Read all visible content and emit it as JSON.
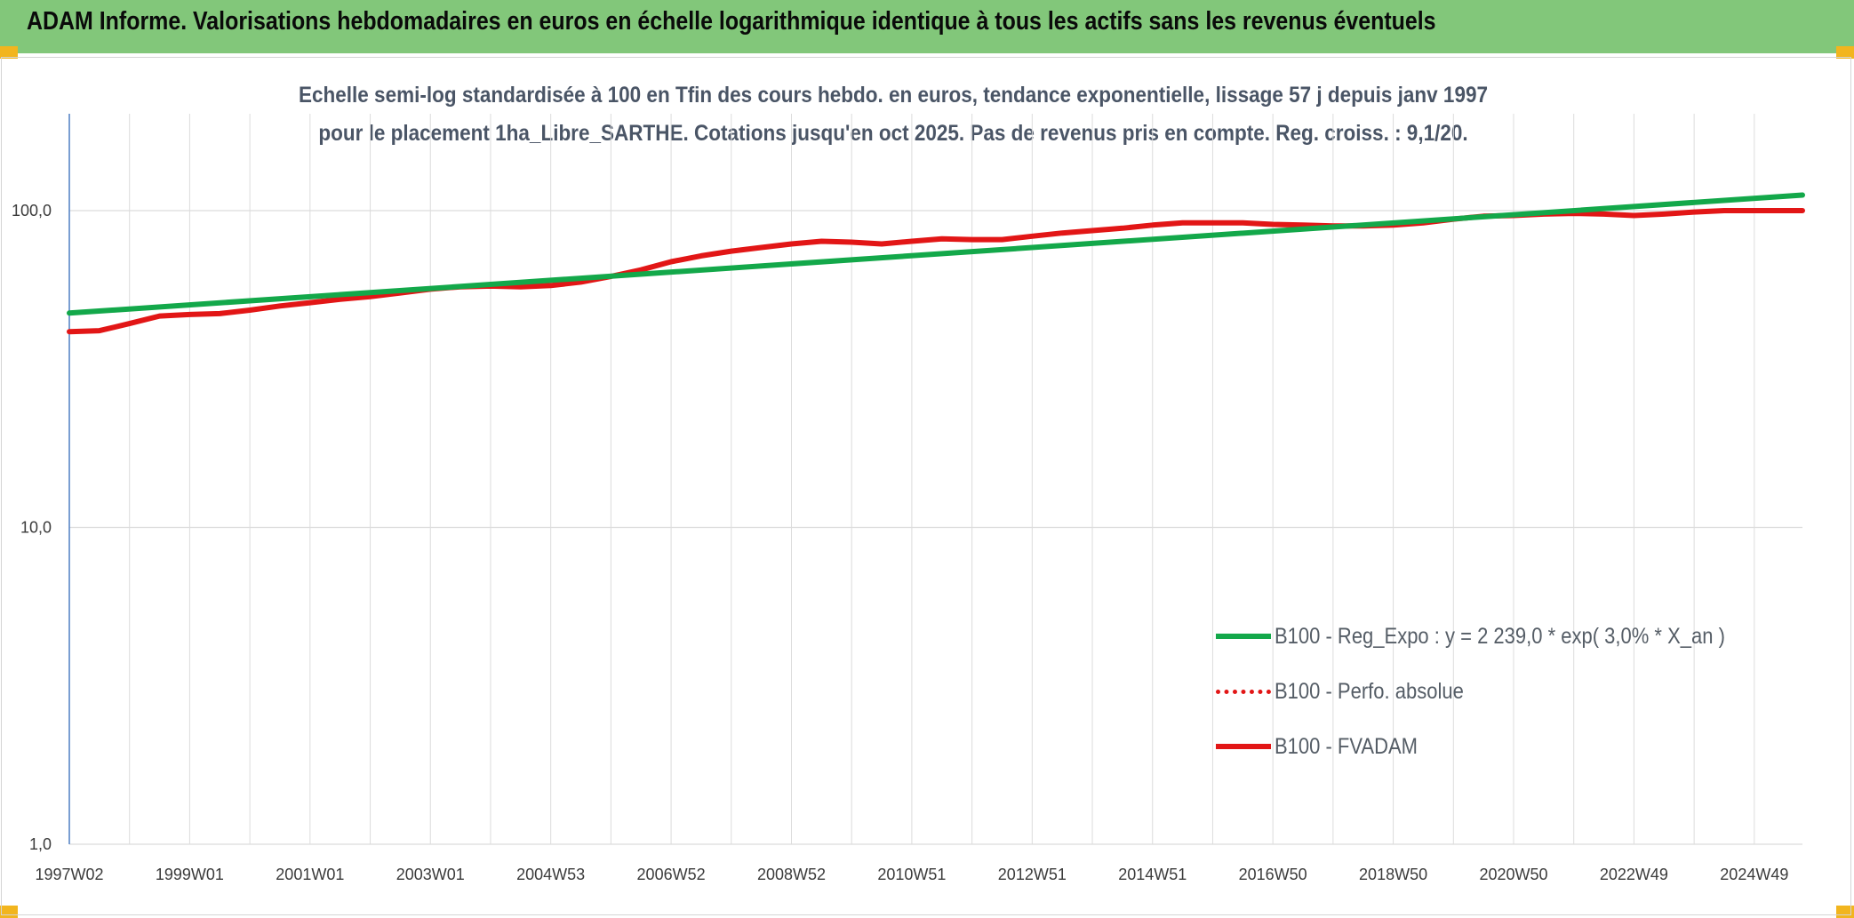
{
  "header": {
    "title": "ADAM Informe. Valorisations hebdomadaires en euros en échelle logarithmique identique à tous les actifs sans les revenus éventuels"
  },
  "chart_data": {
    "type": "line",
    "title": "Echelle semi-log standardisée à 100 en Tfin des cours hebdo. en euros, tendance exponentielle, lissage 57 j depuis janv 1997 pour le placement 1ha_Libre_SARTHE. Cotations jusqu'en oct 2025. Pas de revenus pris en compte. Reg. croiss. : 9,1/20.",
    "y_scale": "log",
    "ylim": [
      1,
      200
    ],
    "xlim": [
      1997.0,
      2025.8
    ],
    "y_ticks": [
      {
        "value": 1,
        "label": "1,0"
      },
      {
        "value": 10,
        "label": "10,0"
      },
      {
        "value": 100,
        "label": "100,0"
      }
    ],
    "x_ticks": [
      {
        "value": 1997.0,
        "label": "1997W02"
      },
      {
        "value": 1999.0,
        "label": "1999W01"
      },
      {
        "value": 2001.0,
        "label": "2001W01"
      },
      {
        "value": 2003.0,
        "label": "2003W01"
      },
      {
        "value": 2005.0,
        "label": "2004W53"
      },
      {
        "value": 2007.0,
        "label": "2006W52"
      },
      {
        "value": 2009.0,
        "label": "2008W52"
      },
      {
        "value": 2011.0,
        "label": "2010W51"
      },
      {
        "value": 2013.0,
        "label": "2012W51"
      },
      {
        "value": 2015.0,
        "label": "2014W51"
      },
      {
        "value": 2017.0,
        "label": "2016W50"
      },
      {
        "value": 2019.0,
        "label": "2018W50"
      },
      {
        "value": 2021.0,
        "label": "2020W50"
      },
      {
        "value": 2023.0,
        "label": "2022W49"
      },
      {
        "value": 2025.0,
        "label": "2024W49"
      }
    ],
    "x_gridlines": [
      1997.0,
      1998.0,
      1999.0,
      2000.0,
      2001.0,
      2002.0,
      2003.0,
      2004.0,
      2005.0,
      2006.0,
      2007.0,
      2008.0,
      2009.0,
      2010.0,
      2011.0,
      2012.0,
      2013.0,
      2014.0,
      2015.0,
      2016.0,
      2017.0,
      2018.0,
      2019.0,
      2020.0,
      2021.0,
      2022.0,
      2023.0,
      2024.0,
      2025.0
    ],
    "legend_position": "right",
    "series": [
      {
        "name": "B100 - Reg_Expo : y = 2 239,0 * exp( 3,0% *  X_an )",
        "color": "#13a84a",
        "style": "solid",
        "points": [
          [
            1997.0,
            47.5
          ],
          [
            2025.8,
            112
          ]
        ]
      },
      {
        "name": "B100 - Perfo. absolue",
        "color": "#e21616",
        "style": "dotted",
        "points": [
          [
            1997.0,
            41.5
          ],
          [
            1997.5,
            41.8
          ],
          [
            1998.0,
            44
          ],
          [
            1998.5,
            46.5
          ],
          [
            1999.0,
            47
          ],
          [
            1999.5,
            47.3
          ],
          [
            2000.0,
            48.5
          ],
          [
            2000.5,
            50
          ],
          [
            2001.0,
            51.2
          ],
          [
            2001.5,
            52.5
          ],
          [
            2002.0,
            53.5
          ],
          [
            2002.5,
            55
          ],
          [
            2003.0,
            56.5
          ],
          [
            2003.5,
            57.5
          ],
          [
            2004.0,
            57.8
          ],
          [
            2004.5,
            57.5
          ],
          [
            2005.0,
            58
          ],
          [
            2005.5,
            59.5
          ],
          [
            2006.0,
            62
          ],
          [
            2006.5,
            65
          ],
          [
            2007.0,
            69
          ],
          [
            2007.5,
            72
          ],
          [
            2008.0,
            74.5
          ],
          [
            2008.5,
            76.5
          ],
          [
            2009.0,
            78.5
          ],
          [
            2009.5,
            80
          ],
          [
            2010.0,
            79.5
          ],
          [
            2010.5,
            78.5
          ],
          [
            2011.0,
            80
          ],
          [
            2011.5,
            81.5
          ],
          [
            2012.0,
            81
          ],
          [
            2012.5,
            81
          ],
          [
            2013.0,
            83
          ],
          [
            2013.5,
            85
          ],
          [
            2014.0,
            86.5
          ],
          [
            2014.5,
            88
          ],
          [
            2015.0,
            90
          ],
          [
            2015.5,
            91.5
          ],
          [
            2016.0,
            91.5
          ],
          [
            2016.5,
            91.5
          ],
          [
            2017.0,
            90.5
          ],
          [
            2017.5,
            90
          ],
          [
            2018.0,
            89.5
          ],
          [
            2018.5,
            89.5
          ],
          [
            2019.0,
            90
          ],
          [
            2019.5,
            91.5
          ],
          [
            2020.0,
            94
          ],
          [
            2020.5,
            96
          ],
          [
            2021.0,
            96.5
          ],
          [
            2021.5,
            97.5
          ],
          [
            2022.0,
            98
          ],
          [
            2022.5,
            97.5
          ],
          [
            2023.0,
            96.5
          ],
          [
            2023.5,
            97.5
          ],
          [
            2024.0,
            99
          ],
          [
            2024.5,
            100
          ],
          [
            2025.0,
            100
          ],
          [
            2025.8,
            100
          ]
        ]
      },
      {
        "name": "B100 - FVADAM",
        "color": "#e21616",
        "style": "solid",
        "points": [
          [
            1997.0,
            41.5
          ],
          [
            1997.5,
            41.8
          ],
          [
            1998.0,
            44
          ],
          [
            1998.5,
            46.5
          ],
          [
            1999.0,
            47
          ],
          [
            1999.5,
            47.3
          ],
          [
            2000.0,
            48.5
          ],
          [
            2000.5,
            50
          ],
          [
            2001.0,
            51.2
          ],
          [
            2001.5,
            52.5
          ],
          [
            2002.0,
            53.5
          ],
          [
            2002.5,
            55
          ],
          [
            2003.0,
            56.5
          ],
          [
            2003.5,
            57.5
          ],
          [
            2004.0,
            57.8
          ],
          [
            2004.5,
            57.5
          ],
          [
            2005.0,
            58
          ],
          [
            2005.5,
            59.5
          ],
          [
            2006.0,
            62
          ],
          [
            2006.5,
            65
          ],
          [
            2007.0,
            69
          ],
          [
            2007.5,
            72
          ],
          [
            2008.0,
            74.5
          ],
          [
            2008.5,
            76.5
          ],
          [
            2009.0,
            78.5
          ],
          [
            2009.5,
            80
          ],
          [
            2010.0,
            79.5
          ],
          [
            2010.5,
            78.5
          ],
          [
            2011.0,
            80
          ],
          [
            2011.5,
            81.5
          ],
          [
            2012.0,
            81
          ],
          [
            2012.5,
            81
          ],
          [
            2013.0,
            83
          ],
          [
            2013.5,
            85
          ],
          [
            2014.0,
            86.5
          ],
          [
            2014.5,
            88
          ],
          [
            2015.0,
            90
          ],
          [
            2015.5,
            91.5
          ],
          [
            2016.0,
            91.5
          ],
          [
            2016.5,
            91.5
          ],
          [
            2017.0,
            90.5
          ],
          [
            2017.5,
            90
          ],
          [
            2018.0,
            89.5
          ],
          [
            2018.5,
            89.5
          ],
          [
            2019.0,
            90
          ],
          [
            2019.5,
            91.5
          ],
          [
            2020.0,
            94
          ],
          [
            2020.5,
            96
          ],
          [
            2021.0,
            96.5
          ],
          [
            2021.5,
            97.5
          ],
          [
            2022.0,
            98
          ],
          [
            2022.5,
            97.5
          ],
          [
            2023.0,
            96.5
          ],
          [
            2023.5,
            97.5
          ],
          [
            2024.0,
            99
          ],
          [
            2024.5,
            100
          ],
          [
            2025.0,
            100
          ],
          [
            2025.8,
            100
          ]
        ]
      }
    ]
  }
}
